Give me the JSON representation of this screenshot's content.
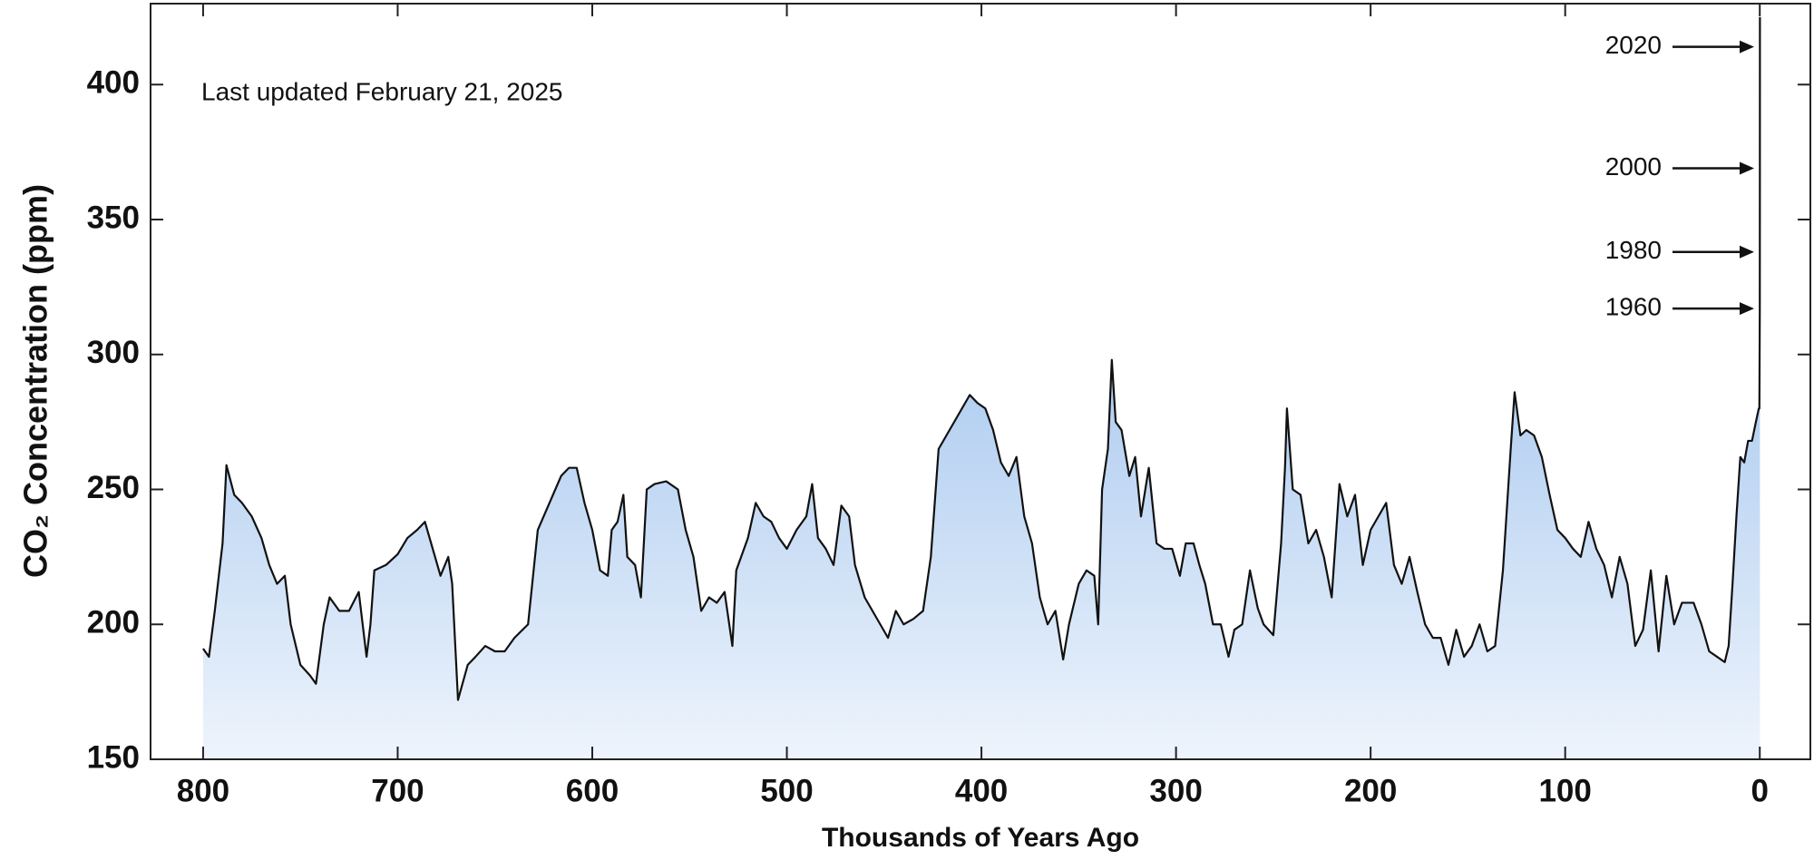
{
  "chart_data": {
    "type": "area",
    "y_label": "CO₂ Concentration (ppm)",
    "x_label": "Thousands of Years Ago",
    "subtitle": "Last updated February 21, 2025",
    "xlim": [
      827,
      -26
    ],
    "ylim": [
      150,
      430
    ],
    "xticks": [
      800,
      700,
      600,
      500,
      400,
      300,
      200,
      100,
      0
    ],
    "yticks": [
      150,
      200,
      250,
      300,
      350,
      400
    ],
    "color": "#111111",
    "fill_top": "#a9c9ef",
    "fill_bottom": "#eef4fc",
    "annotations": [
      {
        "text": "2020",
        "y": 414
      },
      {
        "text": "2000",
        "y": 369
      },
      {
        "text": "1980",
        "y": 338
      },
      {
        "text": "1960",
        "y": 317
      }
    ],
    "x": [
      800,
      797,
      794,
      790,
      788,
      784,
      780,
      775,
      770,
      766,
      762,
      758,
      755,
      750,
      745,
      742,
      738,
      735,
      730,
      725,
      720,
      716,
      714,
      712,
      706,
      700,
      695,
      690,
      686,
      682,
      678,
      674,
      672,
      669,
      664,
      660,
      655,
      650,
      645,
      640,
      633,
      628,
      622,
      616,
      612,
      608,
      604,
      600,
      596,
      592,
      590,
      587,
      584,
      582,
      578,
      575,
      572,
      568,
      562,
      556,
      552,
      548,
      544,
      540,
      536,
      532,
      528,
      526,
      520,
      516,
      512,
      508,
      504,
      500,
      495,
      490,
      487,
      484,
      480,
      476,
      472,
      468,
      465,
      460,
      456,
      452,
      448,
      444,
      440,
      435,
      430,
      426,
      422,
      418,
      414,
      410,
      406,
      402,
      398,
      394,
      390,
      386,
      382,
      378,
      374,
      370,
      366,
      362,
      358,
      355,
      350,
      346,
      342,
      340,
      338,
      335,
      333,
      331,
      328,
      324,
      321,
      318,
      314,
      310,
      306,
      302,
      298,
      295,
      291,
      288,
      285,
      281,
      277,
      273,
      270,
      266,
      262,
      258,
      255,
      250,
      246,
      244,
      243,
      240,
      236,
      232,
      228,
      224,
      220,
      216,
      212,
      208,
      204,
      200,
      196,
      192,
      188,
      184,
      180,
      176,
      172,
      168,
      164,
      160,
      156,
      152,
      148,
      144,
      140,
      136,
      132,
      128,
      126,
      123,
      120,
      116,
      112,
      108,
      104,
      100,
      96,
      92,
      88,
      84,
      80,
      76,
      72,
      68,
      64,
      60,
      56,
      52,
      48,
      44,
      40,
      34,
      30,
      26,
      22,
      18,
      16,
      14,
      12,
      10,
      8,
      6,
      4,
      2,
      0.5,
      0.2,
      -0.01,
      -0.03,
      -0.05,
      -0.07,
      -0.075
    ],
    "values": [
      191,
      188,
      205,
      230,
      259,
      248,
      245,
      240,
      232,
      222,
      215,
      218,
      200,
      185,
      181,
      178,
      200,
      210,
      205,
      205,
      212,
      188,
      200,
      220,
      222,
      226,
      232,
      235,
      238,
      228,
      218,
      225,
      215,
      172,
      185,
      188,
      192,
      190,
      190,
      195,
      200,
      235,
      245,
      255,
      258,
      258,
      245,
      235,
      220,
      218,
      235,
      238,
      248,
      225,
      222,
      210,
      250,
      252,
      253,
      250,
      235,
      225,
      205,
      210,
      208,
      212,
      192,
      220,
      232,
      245,
      240,
      238,
      232,
      228,
      235,
      240,
      252,
      232,
      228,
      222,
      244,
      240,
      222,
      210,
      205,
      200,
      195,
      205,
      200,
      202,
      205,
      225,
      265,
      270,
      275,
      280,
      285,
      282,
      280,
      272,
      260,
      255,
      262,
      240,
      230,
      210,
      200,
      205,
      187,
      200,
      215,
      220,
      218,
      200,
      250,
      265,
      298,
      275,
      272,
      255,
      262,
      240,
      258,
      230,
      228,
      228,
      218,
      230,
      230,
      222,
      215,
      200,
      200,
      188,
      198,
      200,
      220,
      206,
      200,
      196,
      230,
      258,
      280,
      250,
      248,
      230,
      235,
      225,
      210,
      252,
      240,
      248,
      222,
      235,
      240,
      245,
      222,
      215,
      225,
      212,
      200,
      195,
      195,
      185,
      198,
      188,
      192,
      200,
      190,
      192,
      220,
      265,
      286,
      270,
      272,
      270,
      262,
      248,
      235,
      232,
      228,
      225,
      238,
      228,
      222,
      210,
      225,
      215,
      192,
      198,
      220,
      190,
      218,
      200,
      208,
      208,
      200,
      190,
      188,
      186,
      192,
      215,
      240,
      262,
      260,
      268,
      268,
      275,
      280,
      280,
      317,
      339,
      369,
      414,
      425
    ]
  }
}
